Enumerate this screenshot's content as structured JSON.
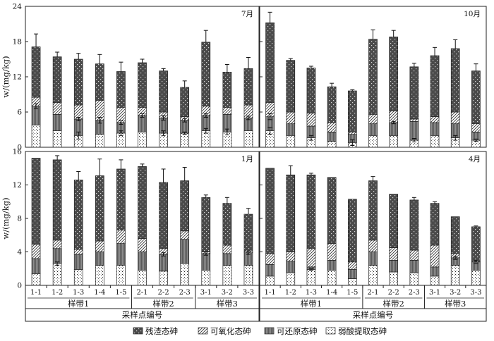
{
  "chart_data": {
    "type": "bar",
    "stacked": true,
    "xlabel": "采样点编号",
    "ylabel": "w/(mg/kg)",
    "components": [
      "弱酸提取态砷",
      "可还原态砷",
      "可氧化态砷",
      "残渣态砷"
    ],
    "legend_order": [
      "残渣态砷",
      "可氧化态砷",
      "可还原态砷",
      "弱酸提取态砷"
    ],
    "legend_position": "bottom",
    "grid": false,
    "panels": [
      {
        "label": "7月",
        "ylim": [
          0,
          24
        ],
        "yticks": [
          "0",
          "6",
          "12",
          "18",
          "24"
        ],
        "categories": [
          "1-1",
          "1-2",
          "1-3",
          "1-4",
          "1-5",
          "2-1",
          "2-2",
          "2-3",
          "3-1",
          "3-2",
          "3-3"
        ],
        "groups": [
          {
            "name": "样带1",
            "count": 5
          },
          {
            "name": "样带2",
            "count": 3
          },
          {
            "name": "样带3",
            "count": 3
          }
        ],
        "series": [
          {
            "name": "弱酸提取态砷",
            "values": [
              3.8,
              2.8,
              2.0,
              2.2,
              2.4,
              2.6,
              2.4,
              2.4,
              2.8,
              2.6,
              2.8
            ]
          },
          {
            "name": "可还原态砷",
            "values": [
              3.2,
              2.8,
              2.8,
              2.4,
              1.8,
              2.8,
              2.6,
              2.2,
              2.6,
              3.0,
              2.2
            ]
          },
          {
            "name": "可氧化态砷",
            "values": [
              1.5,
              2.0,
              2.4,
              3.4,
              2.6,
              1.4,
              1.0,
              0.6,
              1.6,
              1.2,
              2.2
            ]
          },
          {
            "name": "残渣态砷",
            "values": [
              8.6,
              7.8,
              7.8,
              6.2,
              6.1,
              7.6,
              7.0,
              5.0,
              10.9,
              6.0,
              6.2
            ]
          }
        ],
        "error_top": [
          2.2,
          0.8,
          1.0,
          1.6,
          1.6,
          0.6,
          0.4,
          1.1,
          2.0,
          1.3,
          1.9
        ],
        "error_mid": [
          0.4,
          0,
          0.3,
          0.5,
          0.3,
          0.3,
          0.4,
          0.3,
          0.3,
          0,
          0.3
        ],
        "error_low": [
          0,
          0,
          0.6,
          0,
          0.4,
          0,
          0.4,
          0.2,
          0.4,
          0.5,
          0
        ]
      },
      {
        "label": "10月",
        "ylim": [
          0,
          24
        ],
        "yticks": [
          "0",
          "6",
          "12",
          "18",
          "24"
        ],
        "categories": [
          "1-1",
          "1-2",
          "1-3",
          "1-4",
          "1-5",
          "2-1",
          "2-2",
          "2-3",
          "3-1",
          "3-2",
          "3-3"
        ],
        "groups": [
          {
            "name": "样带1",
            "count": 5
          },
          {
            "name": "样带2",
            "count": 3
          },
          {
            "name": "样带3",
            "count": 3
          }
        ],
        "series": [
          {
            "name": "弱酸提取态砷",
            "values": [
              2.8,
              2.0,
              1.6,
              1.0,
              0.8,
              2.0,
              2.0,
              1.2,
              2.0,
              1.6,
              1.2
            ]
          },
          {
            "name": "可还原态砷",
            "values": [
              2.4,
              2.0,
              2.0,
              1.6,
              1.4,
              2.0,
              2.2,
              3.2,
              2.2,
              2.4,
              1.4
            ]
          },
          {
            "name": "可氧化态砷",
            "values": [
              2.4,
              2.0,
              2.2,
              1.6,
              0.4,
              1.6,
              2.0,
              0.4,
              1.0,
              2.0,
              1.4
            ]
          },
          {
            "name": "残渣态砷",
            "values": [
              13.6,
              8.8,
              7.7,
              6.1,
              7.0,
              12.8,
              12.6,
              8.9,
              10.4,
              10.8,
              9.0
            ]
          }
        ],
        "error_top": [
          1.8,
          0.3,
          0.3,
          0.6,
          0.2,
          1.6,
          1.1,
          0.6,
          1.4,
          1.5,
          1.2
        ],
        "error_mid": [
          0.5,
          0,
          0,
          0,
          0,
          0,
          0.2,
          0,
          0,
          0,
          0
        ],
        "error_low": [
          0.6,
          0,
          0.4,
          0,
          0.5,
          0,
          0,
          0.3,
          0,
          0.4,
          0.2
        ]
      },
      {
        "label": "1月",
        "ylim": [
          0,
          16
        ],
        "yticks": [
          "0",
          "4",
          "8",
          "12",
          "16"
        ],
        "categories": [
          "1-1",
          "1-2",
          "1-3",
          "1-4",
          "1-5",
          "2-1",
          "2-2",
          "2-3",
          "3-1",
          "3-2",
          "3-3"
        ],
        "groups": [
          {
            "name": "样带1",
            "count": 5
          },
          {
            "name": "样带2",
            "count": 3
          },
          {
            "name": "样带3",
            "count": 3
          }
        ],
        "series": [
          {
            "name": "弱酸提取态砷",
            "values": [
              1.4,
              2.6,
              1.9,
              2.4,
              2.4,
              1.8,
              1.7,
              2.6,
              1.8,
              2.4,
              2.4
            ]
          },
          {
            "name": "可还原态砷",
            "values": [
              1.8,
              1.8,
              1.8,
              1.6,
              2.6,
              2.2,
              2.0,
              2.9,
              2.0,
              1.4,
              1.5
            ]
          },
          {
            "name": "可氧化态砷",
            "values": [
              1.7,
              1.0,
              0.6,
              1.3,
              1.6,
              1.6,
              0.7,
              1.0,
              0.2,
              1.0,
              0.2
            ]
          },
          {
            "name": "残渣态砷",
            "values": [
              10.3,
              9.6,
              8.3,
              7.8,
              7.3,
              8.6,
              7.9,
              6.0,
              6.5,
              5.0,
              4.4
            ]
          }
        ],
        "error_top": [
          0,
          0.5,
          1.0,
          2.0,
          1.1,
          0.3,
          1.6,
          1.6,
          0.3,
          0.7,
          0.7
        ],
        "error_mid": [
          0,
          0,
          0,
          0,
          0,
          0,
          0.2,
          0,
          0.2,
          0,
          0.2
        ],
        "error_low": [
          0,
          0.2,
          0,
          0,
          0,
          0,
          0,
          0,
          0,
          0,
          0
        ]
      },
      {
        "label": "4月",
        "ylim": [
          0,
          16
        ],
        "yticks": [
          "0",
          "4",
          "8",
          "12",
          "16"
        ],
        "categories": [
          "1-1",
          "1-2",
          "1-3",
          "1-4",
          "1-5",
          "2-1",
          "2-2",
          "2-3",
          "3-1",
          "3-2",
          "3-3"
        ],
        "groups": [
          {
            "name": "样带1",
            "count": 5
          },
          {
            "name": "样带2",
            "count": 3
          },
          {
            "name": "样带3",
            "count": 3
          }
        ],
        "series": [
          {
            "name": "弱酸提取态砷",
            "values": [
              1.1,
              1.5,
              1.9,
              1.8,
              0.8,
              2.4,
              1.6,
              1.5,
              1.1,
              2.4,
              1.8
            ]
          },
          {
            "name": "可还原态砷",
            "values": [
              1.4,
              1.4,
              0.3,
              1.2,
              1.1,
              1.6,
              1.4,
              1.5,
              1.1,
              0.9,
              1.0
            ]
          },
          {
            "name": "可氧化态砷",
            "values": [
              1.3,
              1.1,
              2.2,
              2.0,
              0.9,
              1.4,
              1.5,
              1.2,
              2.6,
              0.5,
              0
            ]
          },
          {
            "name": "残渣态砷",
            "values": [
              10.2,
              9.2,
              8.8,
              7.9,
              7.5,
              7.1,
              6.4,
              6.0,
              5.0,
              4.4,
              4.2
            ]
          }
        ],
        "error_top": [
          0,
          1.1,
          0.2,
          0,
          0,
          0.5,
          0,
          0.3,
          0.2,
          0,
          0.1
        ],
        "error_mid": [
          0,
          0,
          0,
          0,
          0,
          0,
          0,
          0,
          0,
          0.2,
          0.2
        ],
        "error_low": [
          0,
          0,
          0.1,
          0,
          0,
          0,
          0,
          0,
          0,
          0,
          0
        ]
      }
    ]
  }
}
